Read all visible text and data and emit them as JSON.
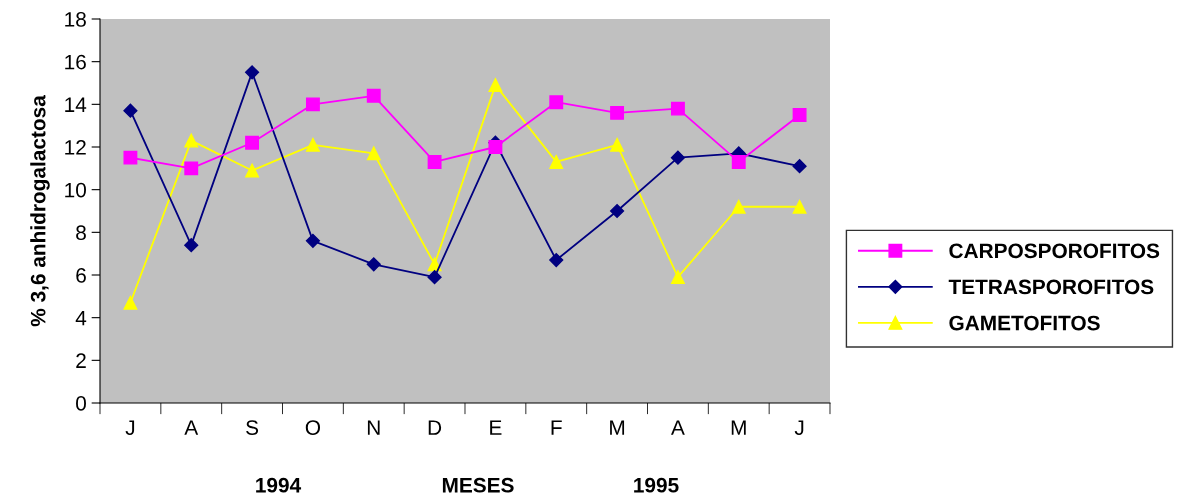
{
  "chart_data": {
    "type": "line",
    "xlabel": "MESES",
    "ylabel": "% 3,6 anhidrogalactosa",
    "categories": [
      "J",
      "A",
      "S",
      "O",
      "N",
      "D",
      "E",
      "F",
      "M",
      "A",
      "M",
      "J"
    ],
    "series": [
      {
        "name": "CARPOSPOROFITOS",
        "color": "#ff00ff",
        "marker": "square",
        "values": [
          11.5,
          11.0,
          12.2,
          14.0,
          14.4,
          11.3,
          12.0,
          14.1,
          13.6,
          13.8,
          11.3,
          13.5
        ]
      },
      {
        "name": "TETRASPOROFITOS",
        "color": "#000080",
        "marker": "diamond",
        "values": [
          13.7,
          7.4,
          15.5,
          7.6,
          6.5,
          5.9,
          12.2,
          6.7,
          9.0,
          11.5,
          11.7,
          11.1
        ]
      },
      {
        "name": "GAMETOFITOS",
        "color": "#ffff00",
        "marker": "triangle",
        "values": [
          4.7,
          12.3,
          10.9,
          12.1,
          11.7,
          6.5,
          14.9,
          11.3,
          12.1,
          5.9,
          9.2,
          9.2
        ]
      }
    ],
    "annotations": [
      "1994",
      "1995"
    ],
    "ylim": [
      0,
      18
    ],
    "yticks": [
      0,
      2,
      4,
      6,
      8,
      10,
      12,
      14,
      16,
      18
    ],
    "grid": false,
    "legend": "right",
    "line_style": "solid"
  }
}
